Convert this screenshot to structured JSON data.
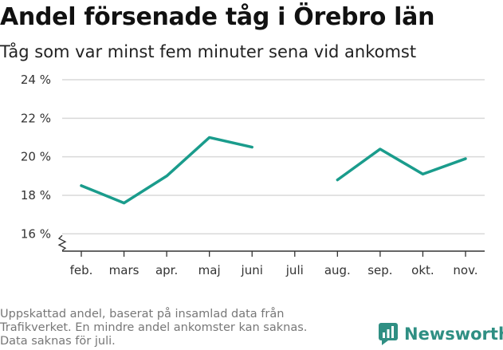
{
  "title": "Andel försenade tåg i Örebro län",
  "subtitle": "Tåg som var minst fem minuter sena vid ankomst",
  "caption": [
    "Uppskattad andel, baserat på insamlad data från",
    "Trafikverket. En mindre andel ankomster kan saknas.",
    "Data saknas för juli."
  ],
  "brand": {
    "name": "Newsworthy",
    "color": "#2f8f83",
    "icon": "bar-chart-logo-icon"
  },
  "colors": {
    "line": "#1a9c8c",
    "grid": "#d9d9d9",
    "axis": "#333333"
  },
  "chart_data": {
    "type": "line",
    "categories": [
      "feb.",
      "mars",
      "apr.",
      "maj",
      "juni",
      "juli",
      "aug.",
      "sep.",
      "okt.",
      "nov."
    ],
    "series": [
      {
        "values": [
          18.5,
          17.6,
          19.0,
          21.0,
          20.5,
          null,
          18.8,
          20.4,
          19.1,
          19.9
        ]
      }
    ],
    "y_ticks": [
      16,
      18,
      20,
      22,
      24
    ],
    "y_tick_labels": [
      "16 %",
      "18 %",
      "20 %",
      "22 %",
      "24 %"
    ],
    "ylim": [
      15.1,
      24
    ],
    "grid": true,
    "legend": "none",
    "broken_y_axis": true
  }
}
